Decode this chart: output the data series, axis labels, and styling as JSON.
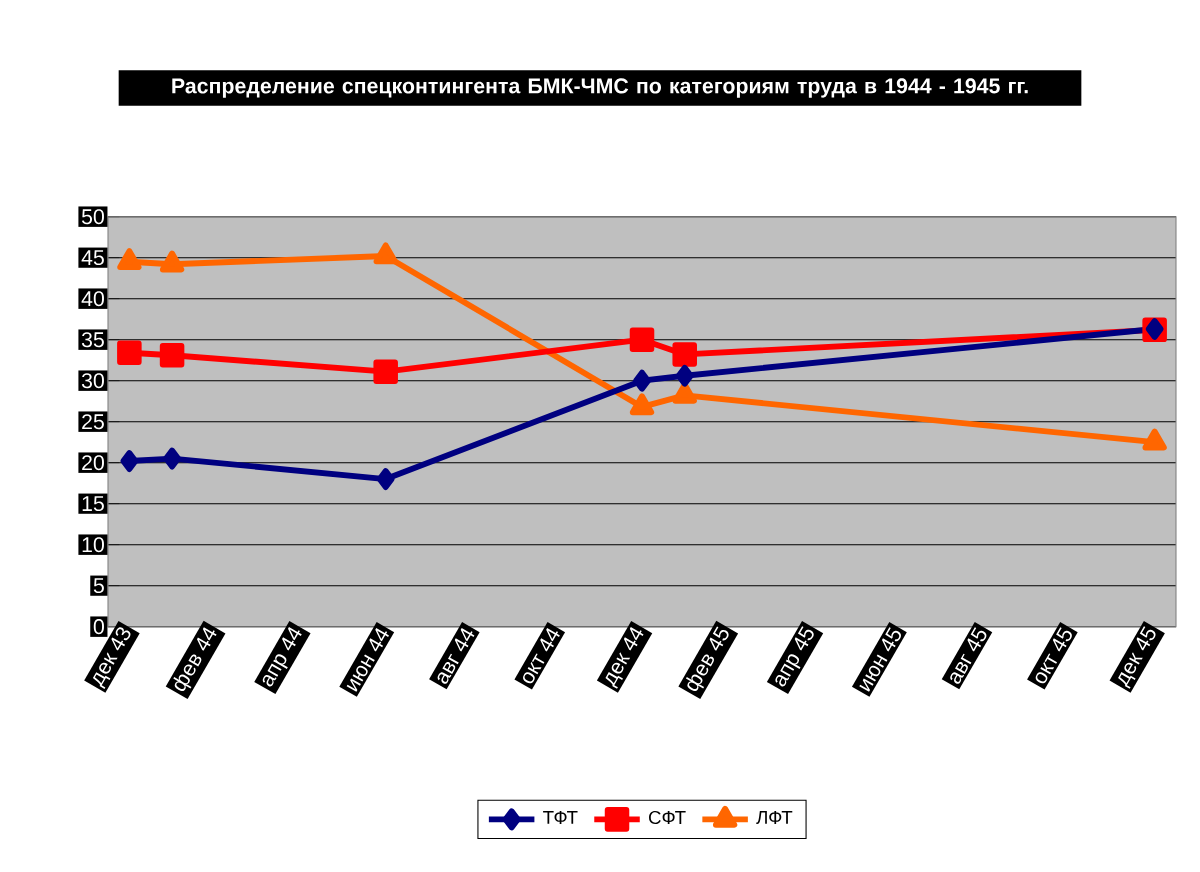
{
  "chart_data": {
    "type": "line",
    "title": "Распределение спецконтингента БМК-ЧМС по категориям труда в 1944 - 1945 гг.",
    "x": [
      "1943-12",
      "1944-01",
      "1944-06",
      "1944-12",
      "1945-01",
      "1945-12"
    ],
    "series": [
      {
        "name": "ТФТ",
        "color": "#000080",
        "marker": "diamond",
        "values": [
          20.2,
          20.5,
          18,
          30,
          30.6,
          36.3
        ]
      },
      {
        "name": "СФТ",
        "color": "#ff0000",
        "marker": "square",
        "values": [
          33.4,
          33.1,
          31.1,
          35,
          33.2,
          36.2
        ]
      },
      {
        "name": "ЛФТ",
        "color": "#ff6600",
        "marker": "triangle",
        "values": [
          44.5,
          44.2,
          45.2,
          26.8,
          28.2,
          22.5
        ]
      }
    ],
    "xlim": [
      "1943-11-16",
      "1945-12-16"
    ],
    "xticks": [
      {
        "value": "1943-12",
        "label": "дек 43"
      },
      {
        "value": "1944-02",
        "label": "фев 44"
      },
      {
        "value": "1944-04",
        "label": "апр 44"
      },
      {
        "value": "1944-06",
        "label": "июн 44"
      },
      {
        "value": "1944-08",
        "label": "авг 44"
      },
      {
        "value": "1944-10",
        "label": "окт 44"
      },
      {
        "value": "1944-12",
        "label": "дек 44"
      },
      {
        "value": "1945-02",
        "label": "фев 45"
      },
      {
        "value": "1945-04",
        "label": "апр 45"
      },
      {
        "value": "1945-06",
        "label": "июн 45"
      },
      {
        "value": "1945-08",
        "label": "авг 45"
      },
      {
        "value": "1945-10",
        "label": "окт 45"
      },
      {
        "value": "1945-12",
        "label": "дек 45"
      }
    ],
    "ylim": [
      0,
      50
    ],
    "yticks": [
      0,
      5,
      10,
      15,
      20,
      25,
      30,
      35,
      40,
      45,
      50
    ],
    "grid": "y",
    "legend": "bottom",
    "line_style": "solid"
  }
}
